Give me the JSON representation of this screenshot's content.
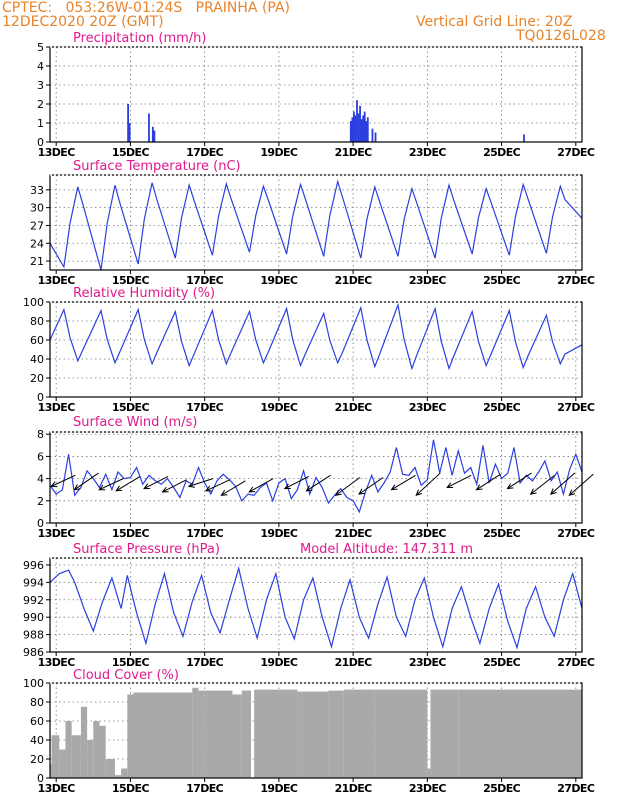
{
  "header": {
    "station": "CPTEC:   053:26W-01:24S   PRAINHA (PA)",
    "datetime": "12DEC2020 20Z (GMT)",
    "grid_line": "Vertical Grid Line: 20Z",
    "code": "TQ0126L028"
  },
  "model_altitude": "Model Altitude: 147.311 m",
  "colors": {
    "line": "#2b3fe0",
    "title": "#e0198c",
    "header": "#e8832a",
    "cloud": "#a9a9a9",
    "grid": "#777777"
  },
  "chart_data": [
    {
      "type": "bar",
      "title": "Precipitation (mm/h)",
      "ylim": [
        0,
        5
      ],
      "yticks": [
        0,
        1,
        2,
        3,
        4,
        5
      ],
      "xticks": [
        "13DEC",
        "15DEC",
        "17DEC",
        "19DEC",
        "21DEC",
        "23DEC",
        "25DEC",
        "27DEC"
      ],
      "x_unit": "hours since 12DEC2020 20Z",
      "events": [
        {
          "x": 50.5,
          "v": 2.0
        },
        {
          "x": 51.5,
          "v": 1.0
        },
        {
          "x": 64.0,
          "v": 1.5
        },
        {
          "x": 66.5,
          "v": 0.8
        },
        {
          "x": 67.5,
          "v": 0.6
        },
        {
          "x": 194.5,
          "v": 1.1
        },
        {
          "x": 195.5,
          "v": 1.3
        },
        {
          "x": 196.5,
          "v": 1.6
        },
        {
          "x": 197.5,
          "v": 1.4
        },
        {
          "x": 198.5,
          "v": 2.2
        },
        {
          "x": 199.5,
          "v": 1.5
        },
        {
          "x": 200.5,
          "v": 1.9
        },
        {
          "x": 201.5,
          "v": 1.2
        },
        {
          "x": 202.5,
          "v": 1.4
        },
        {
          "x": 203.5,
          "v": 1.6
        },
        {
          "x": 204.5,
          "v": 1.1
        },
        {
          "x": 205.5,
          "v": 1.3
        },
        {
          "x": 208.5,
          "v": 0.7
        },
        {
          "x": 210.5,
          "v": 0.5
        },
        {
          "x": 306.5,
          "v": 0.4
        }
      ]
    },
    {
      "type": "line",
      "title": "Surface Temperature (nC)",
      "ylim": [
        19.5,
        35.5
      ],
      "yticks": [
        21,
        24,
        27,
        30,
        33
      ],
      "xticks": [
        "13DEC",
        "15DEC",
        "17DEC",
        "19DEC",
        "21DEC",
        "23DEC",
        "25DEC",
        "27DEC"
      ],
      "base": 24,
      "t0": 0,
      "tend": 344,
      "daily": [
        [
          20,
          33.5
        ],
        [
          19.5,
          33.8
        ],
        [
          20.5,
          34.2
        ],
        [
          21.5,
          33.8
        ],
        [
          22,
          34.0
        ],
        [
          22.5,
          33.6
        ],
        [
          22.2,
          33.9
        ],
        [
          21.8,
          34.4
        ],
        [
          21.5,
          33.5
        ],
        [
          21.8,
          33.2
        ],
        [
          21.5,
          33.8
        ],
        [
          22.2,
          33.2
        ],
        [
          22.0,
          33.9
        ],
        [
          22.3,
          33.6
        ],
        [
          21.3,
          33.2
        ]
      ],
      "end_value": 28.2
    },
    {
      "type": "line",
      "title": "Relative Humidity (%)",
      "ylim": [
        0,
        100
      ],
      "yticks": [
        0,
        20,
        40,
        60,
        80,
        100
      ],
      "xticks": [
        "13DEC",
        "15DEC",
        "17DEC",
        "19DEC",
        "21DEC",
        "23DEC",
        "25DEC",
        "27DEC"
      ],
      "base": 60,
      "t0": 0,
      "tend": 344,
      "daily": [
        [
          92,
          38
        ],
        [
          91,
          36
        ],
        [
          92,
          35
        ],
        [
          90,
          33
        ],
        [
          91,
          35
        ],
        [
          90,
          36
        ],
        [
          93,
          33
        ],
        [
          88,
          36
        ],
        [
          94,
          32
        ],
        [
          97,
          30
        ],
        [
          93,
          30
        ],
        [
          90,
          33
        ],
        [
          91,
          31
        ],
        [
          86,
          35
        ],
        [
          90,
          36
        ]
      ],
      "end_value": 55
    },
    {
      "type": "line",
      "title": "Surface Wind (m/s)",
      "ylim": [
        0,
        8.2
      ],
      "yticks": [
        0,
        2,
        4,
        6,
        8
      ],
      "xticks": [
        "13DEC",
        "15DEC",
        "17DEC",
        "19DEC",
        "21DEC",
        "23DEC",
        "25DEC",
        "27DEC"
      ],
      "speed": [
        [
          0,
          3.4
        ],
        [
          4,
          2.6
        ],
        [
          8,
          3.0
        ],
        [
          12,
          6.2
        ],
        [
          16,
          2.5
        ],
        [
          20,
          3.2
        ],
        [
          24,
          4.7
        ],
        [
          28,
          4.0
        ],
        [
          32,
          3.2
        ],
        [
          36,
          4.4
        ],
        [
          40,
          3.0
        ],
        [
          44,
          4.6
        ],
        [
          48,
          4.0
        ],
        [
          52,
          4.1
        ],
        [
          56,
          5.0
        ],
        [
          60,
          3.5
        ],
        [
          64,
          4.3
        ],
        [
          68,
          3.8
        ],
        [
          72,
          3.5
        ],
        [
          76,
          4.0
        ],
        [
          80,
          3.2
        ],
        [
          84,
          2.3
        ],
        [
          88,
          3.8
        ],
        [
          92,
          3.5
        ],
        [
          96,
          5.0
        ],
        [
          100,
          3.6
        ],
        [
          104,
          2.6
        ],
        [
          108,
          3.8
        ],
        [
          112,
          4.4
        ],
        [
          116,
          3.9
        ],
        [
          120,
          3.3
        ],
        [
          124,
          2.0
        ],
        [
          128,
          2.6
        ],
        [
          132,
          2.5
        ],
        [
          136,
          3.2
        ],
        [
          140,
          3.6
        ],
        [
          144,
          2.0
        ],
        [
          148,
          3.6
        ],
        [
          152,
          4.0
        ],
        [
          156,
          2.2
        ],
        [
          160,
          3.0
        ],
        [
          164,
          4.7
        ],
        [
          168,
          2.6
        ],
        [
          172,
          4.1
        ],
        [
          176,
          3.2
        ],
        [
          180,
          1.8
        ],
        [
          184,
          2.5
        ],
        [
          188,
          3.1
        ],
        [
          192,
          2.3
        ],
        [
          196,
          2.0
        ],
        [
          200,
          1.0
        ],
        [
          204,
          2.8
        ],
        [
          208,
          4.3
        ],
        [
          212,
          2.8
        ],
        [
          216,
          3.6
        ],
        [
          220,
          4.6
        ],
        [
          224,
          6.8
        ],
        [
          228,
          4.4
        ],
        [
          232,
          4.3
        ],
        [
          236,
          5.0
        ],
        [
          240,
          3.4
        ],
        [
          244,
          3.9
        ],
        [
          248,
          7.5
        ],
        [
          252,
          4.5
        ],
        [
          256,
          6.8
        ],
        [
          260,
          4.3
        ],
        [
          264,
          6.5
        ],
        [
          268,
          4.5
        ],
        [
          272,
          5.0
        ],
        [
          276,
          3.5
        ],
        [
          280,
          7.0
        ],
        [
          284,
          3.6
        ],
        [
          288,
          5.3
        ],
        [
          292,
          4.0
        ],
        [
          296,
          4.5
        ],
        [
          300,
          6.8
        ],
        [
          304,
          3.6
        ],
        [
          308,
          4.3
        ],
        [
          312,
          3.8
        ],
        [
          316,
          4.6
        ],
        [
          320,
          5.6
        ],
        [
          324,
          3.8
        ],
        [
          328,
          4.6
        ],
        [
          332,
          2.6
        ],
        [
          336,
          4.8
        ],
        [
          340,
          6.2
        ],
        [
          344,
          4.6
        ]
      ],
      "arrows": [
        [
          6,
          4.3,
          3.3
        ],
        [
          21,
          4.5,
          3.0
        ],
        [
          37,
          4.0,
          3.0
        ],
        [
          48,
          4.2,
          2.9
        ],
        [
          66,
          4.2,
          3.1
        ],
        [
          78,
          3.9,
          2.8
        ],
        [
          95,
          4.0,
          3.3
        ],
        [
          106,
          3.9,
          2.9
        ],
        [
          116,
          3.8,
          2.5
        ],
        [
          134,
          4.0,
          2.8
        ],
        [
          157,
          4.2,
          3.1
        ],
        [
          171,
          4.3,
          2.9
        ],
        [
          190,
          4.1,
          2.5
        ],
        [
          205,
          4.1,
          2.6
        ],
        [
          226,
          4.3,
          3.0
        ],
        [
          242,
          4.5,
          2.5
        ],
        [
          262,
          4.3,
          3.2
        ],
        [
          281,
          4.4,
          3.0
        ],
        [
          301,
          4.5,
          3.1
        ],
        [
          316,
          4.3,
          2.6
        ],
        [
          329,
          4.5,
          2.6
        ],
        [
          341,
          4.4,
          2.5
        ]
      ]
    },
    {
      "type": "line",
      "title": "Surface Pressure (hPa)",
      "ylim": [
        986,
        996.8
      ],
      "yticks": [
        986,
        988,
        990,
        992,
        994,
        996
      ],
      "xticks": [
        "13DEC",
        "15DEC",
        "17DEC",
        "19DEC",
        "21DEC",
        "23DEC",
        "25DEC",
        "27DEC"
      ],
      "points": [
        [
          0,
          994.0
        ],
        [
          6,
          995.0
        ],
        [
          12,
          995.4
        ],
        [
          16,
          994.0
        ],
        [
          22,
          991.0
        ],
        [
          28,
          988.4
        ],
        [
          34,
          991.8
        ],
        [
          40,
          994.5
        ],
        [
          46,
          991.0
        ],
        [
          50,
          994.8
        ],
        [
          56,
          990.5
        ],
        [
          62,
          987.0
        ],
        [
          68,
          991.5
        ],
        [
          74,
          995.0
        ],
        [
          80,
          990.5
        ],
        [
          86,
          987.8
        ],
        [
          92,
          991.8
        ],
        [
          98,
          994.8
        ],
        [
          104,
          990.5
        ],
        [
          110,
          988.2
        ],
        [
          116,
          992.0
        ],
        [
          122,
          995.6
        ],
        [
          128,
          991.0
        ],
        [
          134,
          987.6
        ],
        [
          140,
          992.0
        ],
        [
          146,
          995.0
        ],
        [
          152,
          990.0
        ],
        [
          158,
          987.5
        ],
        [
          164,
          992.0
        ],
        [
          170,
          994.5
        ],
        [
          176,
          990.0
        ],
        [
          182,
          986.6
        ],
        [
          188,
          991.0
        ],
        [
          194,
          994.3
        ],
        [
          200,
          990.0
        ],
        [
          206,
          987.6
        ],
        [
          212,
          991.5
        ],
        [
          218,
          994.6
        ],
        [
          224,
          990.0
        ],
        [
          230,
          987.8
        ],
        [
          236,
          992.0
        ],
        [
          242,
          994.5
        ],
        [
          248,
          990.0
        ],
        [
          254,
          986.6
        ],
        [
          260,
          991.0
        ],
        [
          266,
          993.5
        ],
        [
          272,
          990.0
        ],
        [
          278,
          987.0
        ],
        [
          284,
          991.0
        ],
        [
          290,
          993.8
        ],
        [
          296,
          989.5
        ],
        [
          302,
          986.5
        ],
        [
          308,
          991.0
        ],
        [
          314,
          993.5
        ],
        [
          320,
          990.0
        ],
        [
          326,
          987.8
        ],
        [
          332,
          992.0
        ],
        [
          338,
          995.0
        ],
        [
          344,
          991.0
        ]
      ]
    },
    {
      "type": "bar",
      "title": "Cloud Cover (%)",
      "ylim": [
        0,
        100
      ],
      "yticks": [
        0,
        20,
        40,
        60,
        80,
        100
      ],
      "xticks": [
        "13DEC",
        "15DEC",
        "17DEC",
        "19DEC",
        "21DEC",
        "23DEC",
        "25DEC",
        "27DEC"
      ],
      "segments": [
        [
          0,
          1,
          15
        ],
        [
          1,
          6,
          45
        ],
        [
          6,
          10,
          30
        ],
        [
          10,
          14,
          60
        ],
        [
          14,
          20,
          45
        ],
        [
          20,
          24,
          75
        ],
        [
          24,
          28,
          40
        ],
        [
          28,
          32,
          60
        ],
        [
          32,
          36,
          55
        ],
        [
          36,
          42,
          20
        ],
        [
          42,
          46,
          3
        ],
        [
          46,
          50,
          10
        ],
        [
          50,
          54,
          88
        ],
        [
          54,
          92,
          90
        ],
        [
          92,
          96,
          95
        ],
        [
          96,
          100,
          92
        ],
        [
          100,
          118,
          92
        ],
        [
          118,
          124,
          88
        ],
        [
          124,
          130,
          92
        ],
        [
          130,
          132,
          0
        ],
        [
          132,
          160,
          93
        ],
        [
          160,
          180,
          91
        ],
        [
          180,
          190,
          92
        ],
        [
          190,
          210,
          93
        ],
        [
          210,
          226,
          93
        ],
        [
          226,
          236,
          93
        ],
        [
          236,
          244,
          93
        ],
        [
          244,
          246,
          10
        ],
        [
          246,
          264,
          93
        ],
        [
          264,
          300,
          93
        ],
        [
          300,
          344,
          93
        ]
      ]
    }
  ]
}
